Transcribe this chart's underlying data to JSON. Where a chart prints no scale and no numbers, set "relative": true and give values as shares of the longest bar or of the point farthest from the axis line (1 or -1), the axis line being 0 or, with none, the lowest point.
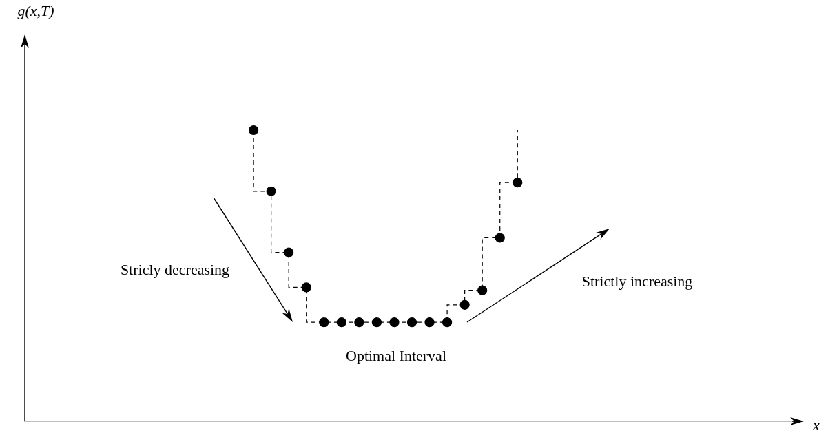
{
  "chart_data": {
    "type": "step",
    "relative": true,
    "xlabel": "x",
    "categories": [
      null,
      null,
      null,
      null,
      null,
      null,
      null,
      null,
      null,
      null,
      null,
      null,
      null,
      null,
      null,
      null,
      null,
      null,
      null,
      null,
      null,
      null,
      null,
      null,
      null,
      null,
      null,
      null,
      null,
      null,
      null,
      null,
      null,
      null,
      null,
      null,
      null,
      null,
      null,
      null,
      null,
      null,
      null,
      null,
      null
    ],
    "series": [
      {
        "color": "#000000",
        "values": [
          null,
          null,
          null,
          null,
          null,
          null,
          null,
          null,
          null,
          null,
          null,
          null,
          null,
          1,
          0.79,
          0.58,
          0.46,
          0.34,
          0.34,
          0.34,
          0.34,
          0.34,
          0.34,
          0.34,
          0.34,
          0.4,
          0.45,
          0.63,
          0.82,
          null,
          null,
          null,
          null,
          null,
          null,
          null,
          null,
          null,
          null,
          null,
          null,
          null,
          null,
          null,
          null
        ]
      }
    ],
    "marker": "circle",
    "line_style": "dashed",
    "grid": false,
    "legend": false,
    "annotations": [
      "Stricly decreasing",
      "Strictly increasing",
      "Optimal Interval",
      "g(x,T)"
    ]
  }
}
